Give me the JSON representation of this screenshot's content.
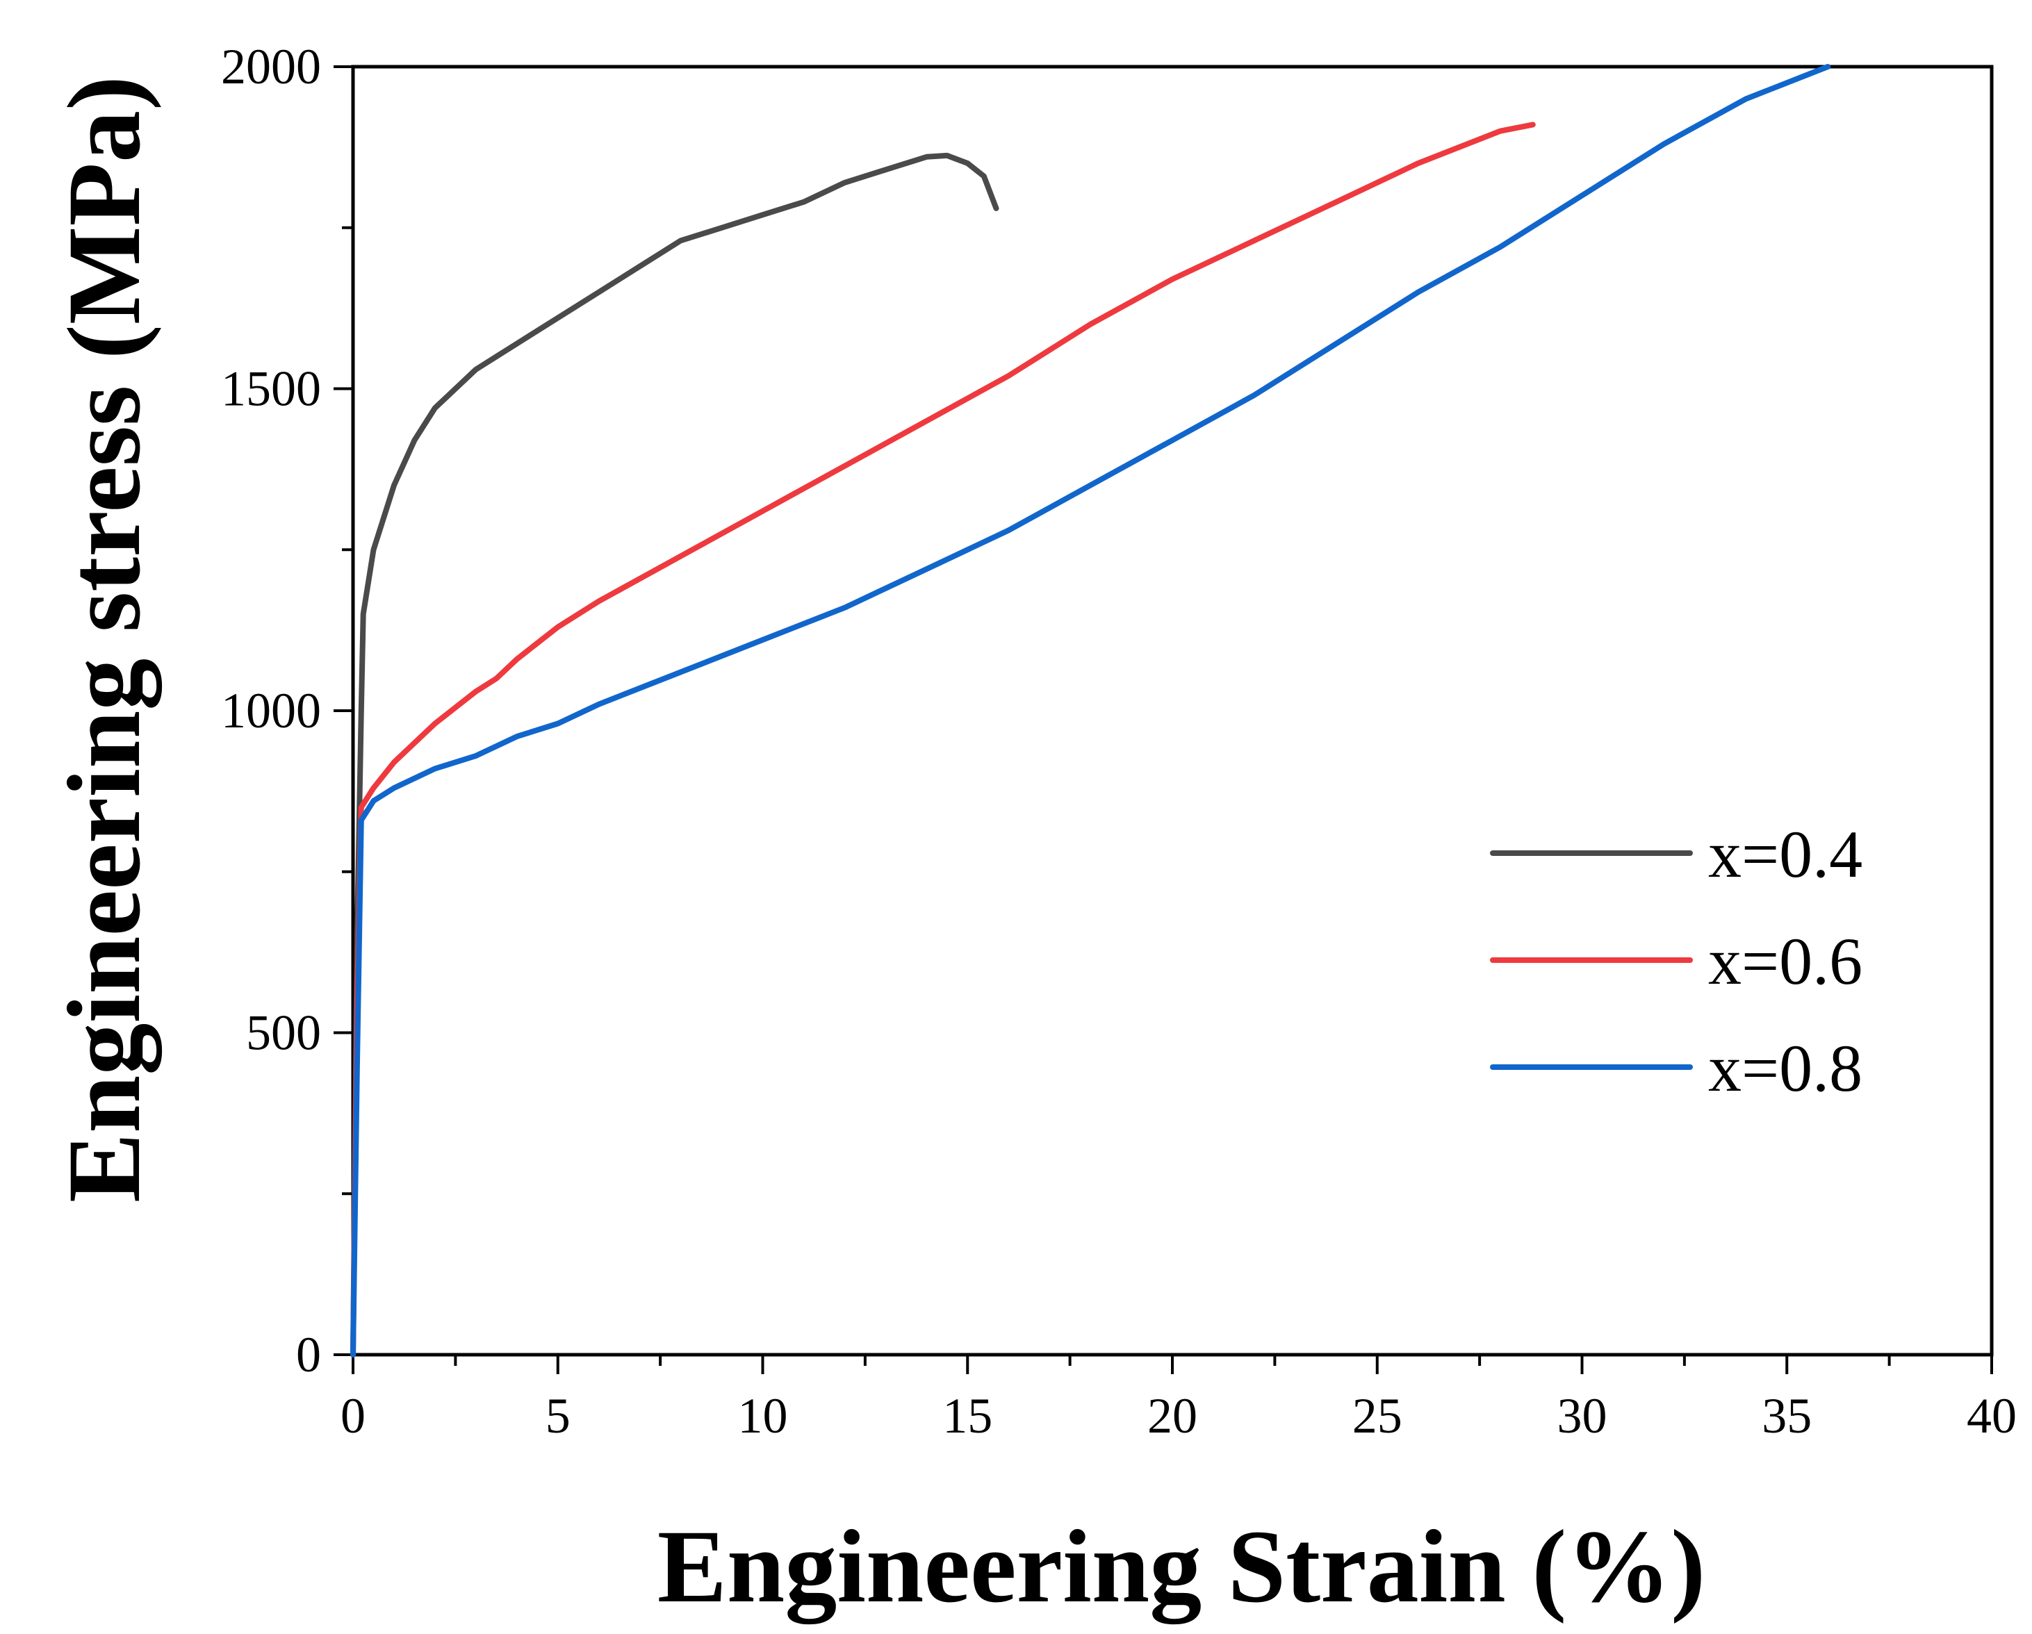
{
  "chart_data": {
    "type": "line",
    "title": "",
    "xlabel": "Engineering Strain (%)",
    "ylabel": "Engineering stress (MPa)",
    "xlim": [
      0,
      40
    ],
    "ylim": [
      0,
      2000
    ],
    "xticks": [
      0,
      5,
      10,
      15,
      20,
      25,
      30,
      35,
      40
    ],
    "xtick_labels": [
      "0",
      "5",
      "10",
      "15",
      "20",
      "25",
      "30",
      "35",
      "40"
    ],
    "yticks": [
      0,
      500,
      1000,
      1500,
      2000
    ],
    "ytick_labels": [
      "0",
      "500",
      "1000",
      "1500",
      "2000"
    ],
    "grid": false,
    "legend_position": "right",
    "series": [
      {
        "name": "x=0.4",
        "color": "#4a4a4a",
        "points": [
          [
            0,
            0
          ],
          [
            0.1,
            650
          ],
          [
            0.2,
            1000
          ],
          [
            0.25,
            1150
          ],
          [
            0.5,
            1250
          ],
          [
            1,
            1350
          ],
          [
            1.5,
            1420
          ],
          [
            2,
            1470
          ],
          [
            3,
            1530
          ],
          [
            4,
            1570
          ],
          [
            5,
            1610
          ],
          [
            6,
            1650
          ],
          [
            7,
            1690
          ],
          [
            8,
            1730
          ],
          [
            9,
            1750
          ],
          [
            10,
            1770
          ],
          [
            11,
            1790
          ],
          [
            12,
            1820
          ],
          [
            13,
            1840
          ],
          [
            14,
            1860
          ],
          [
            14.5,
            1862
          ],
          [
            15,
            1850
          ],
          [
            15.4,
            1830
          ],
          [
            15.7,
            1780
          ]
        ]
      },
      {
        "name": "x=0.6",
        "color": "#ee3a3f",
        "points": [
          [
            0,
            0
          ],
          [
            0.1,
            550
          ],
          [
            0.2,
            850
          ],
          [
            0.5,
            880
          ],
          [
            1,
            920
          ],
          [
            2,
            980
          ],
          [
            3,
            1030
          ],
          [
            3.5,
            1050
          ],
          [
            4,
            1080
          ],
          [
            5,
            1130
          ],
          [
            6,
            1170
          ],
          [
            8,
            1240
          ],
          [
            10,
            1310
          ],
          [
            12,
            1380
          ],
          [
            14,
            1450
          ],
          [
            16,
            1520
          ],
          [
            18,
            1600
          ],
          [
            20,
            1670
          ],
          [
            22,
            1730
          ],
          [
            24,
            1790
          ],
          [
            26,
            1850
          ],
          [
            28,
            1900
          ],
          [
            28.8,
            1910
          ]
        ]
      },
      {
        "name": "x=0.8",
        "color": "#1166cc",
        "points": [
          [
            0,
            0
          ],
          [
            0.1,
            450
          ],
          [
            0.2,
            830
          ],
          [
            0.5,
            860
          ],
          [
            1,
            880
          ],
          [
            2,
            910
          ],
          [
            3,
            930
          ],
          [
            4,
            960
          ],
          [
            5,
            980
          ],
          [
            6,
            1010
          ],
          [
            8,
            1060
          ],
          [
            10,
            1110
          ],
          [
            12,
            1160
          ],
          [
            14,
            1220
          ],
          [
            16,
            1280
          ],
          [
            18,
            1350
          ],
          [
            20,
            1420
          ],
          [
            22,
            1490
          ],
          [
            24,
            1570
          ],
          [
            26,
            1650
          ],
          [
            28,
            1720
          ],
          [
            30,
            1800
          ],
          [
            32,
            1880
          ],
          [
            34,
            1950
          ],
          [
            36,
            2000
          ]
        ]
      }
    ]
  }
}
